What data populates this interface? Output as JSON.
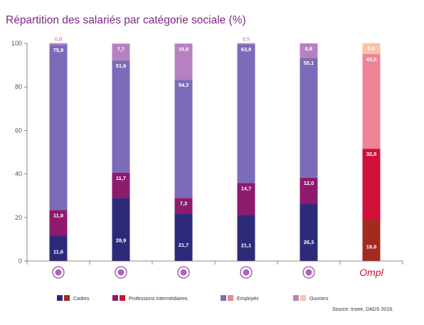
{
  "title": "Répartition des salariés par catégorie sociale (%)",
  "source": "Source: Insee, DADS 2019.",
  "chart_data": {
    "type": "bar",
    "stacked": true,
    "ylim": [
      0,
      100
    ],
    "yticks": [
      0,
      20,
      40,
      60,
      80,
      100
    ],
    "categories": [
      "bank-icon",
      "person-icon",
      "hand-icon",
      "hand-heart-icon",
      "scales-icon",
      "Ompl"
    ],
    "series": [
      {
        "name": "Cadres",
        "values": [
          11.6,
          28.9,
          21.7,
          21.1,
          26.3,
          18.8
        ],
        "color": "#2e2a7a",
        "color_ompl": "#a32a1f"
      },
      {
        "name": "Professions intermédiaires",
        "values": [
          11.8,
          11.7,
          7.3,
          14.7,
          12.0,
          32.8
        ],
        "color": "#8e1a6e",
        "color_ompl": "#d0103a"
      },
      {
        "name": "Employés",
        "values": [
          75.9,
          51.6,
          54.3,
          63.8,
          55.1,
          43.5
        ],
        "color": "#7c6bb8",
        "color_ompl": "#ef8498"
      },
      {
        "name": "Ouvriers",
        "values": [
          0.8,
          7.7,
          16.6,
          0.5,
          6.6,
          5.0
        ],
        "color": "#b780c2",
        "color_ompl": "#f6c4a6"
      }
    ],
    "labels": [
      [
        "11,6",
        "11,8",
        "75,9",
        "0,8"
      ],
      [
        "28,9",
        "11,7",
        "51,6",
        "7,7"
      ],
      [
        "21,7",
        "7,3",
        "54,3",
        "16,6"
      ],
      [
        "21,1",
        "14,7",
        "63,8",
        "0,5"
      ],
      [
        "26,3",
        "12,0",
        "55,1",
        "6,6"
      ],
      [
        "18,8",
        "32,8",
        "43,5",
        "5,0"
      ]
    ],
    "legend": [
      "Cadres",
      "Professions intermédiaires",
      "Employés",
      "Ouvriers"
    ]
  }
}
